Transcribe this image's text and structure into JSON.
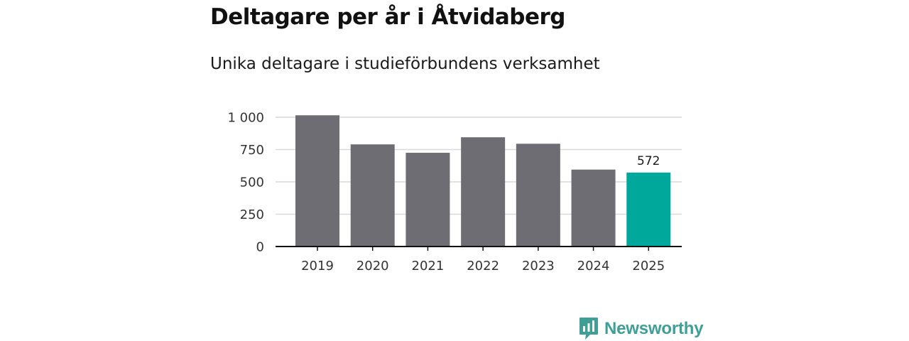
{
  "header": {
    "title": "Deltagare per år i Åtvidaberg",
    "subtitle": "Unika deltagare i studieförbundens verksamhet"
  },
  "brand": {
    "name": "Newsworthy",
    "color": "#3d9f95"
  },
  "colors": {
    "bar": "#6e6d73",
    "highlight": "#00a79b",
    "grid": "#d9d9d9",
    "axis": "#111111"
  },
  "chart_data": {
    "type": "bar",
    "title": "Deltagare per år i Åtvidaberg",
    "subtitle": "Unika deltagare i studieförbundens verksamhet",
    "xlabel": "",
    "ylabel": "",
    "categories": [
      "2019",
      "2020",
      "2021",
      "2022",
      "2023",
      "2024",
      "2025"
    ],
    "values": [
      1015,
      790,
      725,
      845,
      795,
      595,
      572
    ],
    "highlight_index": 6,
    "data_labels": [
      {
        "index": 6,
        "text": "572"
      }
    ],
    "ylim": [
      0,
      1000
    ],
    "yticks": [
      0,
      250,
      500,
      750,
      1000
    ],
    "ytick_labels": [
      "0",
      "250",
      "500",
      "750",
      "1 000"
    ],
    "grid": true,
    "legend": "none"
  }
}
